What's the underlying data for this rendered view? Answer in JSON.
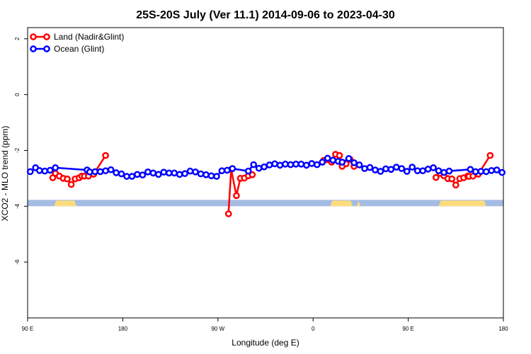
{
  "chart_data": {
    "type": "line",
    "title": "25S-20S July (Ver 11.1)   2014-09-06 to 2023-04-30",
    "xlabel": "Longitude (deg E)",
    "ylabel": "XCO2 - MLO trend (ppm)",
    "xlim": [
      90,
      450
    ],
    "ylim": [
      -8,
      2.4
    ],
    "x_ticks": [
      {
        "value": 90,
        "label": "90 E"
      },
      {
        "value": 162,
        "label": "180"
      },
      {
        "value": 234,
        "label": "90 W"
      },
      {
        "value": 306,
        "label": "0"
      },
      {
        "value": 378,
        "label": "90 E"
      },
      {
        "value": 450,
        "label": "180"
      }
    ],
    "y_ticks": [
      {
        "value": 2,
        "label": "2"
      },
      {
        "value": 0,
        "label": "0"
      },
      {
        "value": -2,
        "label": "-2"
      },
      {
        "value": -4,
        "label": "-4"
      },
      {
        "value": -6,
        "label": "-6"
      }
    ],
    "grid": false,
    "legend_position": "top-left",
    "series": [
      {
        "name": "Land (Nadir&Glint)",
        "color": "#ff0000",
        "points": [
          [
            109,
            -2.98
          ],
          [
            111,
            -2.82
          ],
          [
            114,
            -2.92
          ],
          [
            117,
            -3.0
          ],
          [
            120,
            -3.02
          ],
          [
            123,
            -3.22
          ],
          [
            126,
            -3.02
          ],
          [
            129,
            -2.98
          ],
          [
            131,
            -2.92
          ],
          [
            133,
            -2.92
          ],
          [
            136,
            -2.92
          ],
          [
            140,
            -2.85
          ],
          [
            149,
            -2.18
          ],
          [
            null,
            null
          ],
          [
            242,
            -4.27
          ],
          [
            244,
            -2.68
          ],
          [
            248,
            -3.62
          ],
          [
            251,
            -3.0
          ],
          [
            254,
            -2.99
          ],
          [
            257,
            -2.91
          ],
          [
            260,
            -2.87
          ],
          [
            null,
            null
          ],
          [
            314,
            -2.36
          ],
          [
            317,
            -2.33
          ],
          [
            320,
            -2.42
          ],
          [
            323,
            -2.14
          ],
          [
            326,
            -2.18
          ],
          [
            328,
            -2.57
          ],
          [
            331,
            -2.48
          ],
          [
            334,
            -2.32
          ],
          [
            337,
            -2.57
          ],
          [
            null,
            null
          ],
          [
            399,
            -2.97
          ],
          [
            402,
            -2.82
          ],
          [
            405,
            -2.91
          ],
          [
            408,
            -3.01
          ],
          [
            411,
            -3.02
          ],
          [
            414,
            -3.24
          ],
          [
            417,
            -3.01
          ],
          [
            420,
            -2.98
          ],
          [
            423,
            -2.92
          ],
          [
            424,
            -2.93
          ],
          [
            427,
            -2.92
          ],
          [
            431,
            -2.85
          ],
          [
            440,
            -2.18
          ]
        ]
      },
      {
        "name": "Ocean (Glint)",
        "color": "#0000ff",
        "points": [
          [
            92,
            -2.76
          ],
          [
            96,
            -2.62
          ],
          [
            99,
            -2.72
          ],
          [
            103,
            -2.74
          ],
          [
            107,
            -2.71
          ],
          [
            111,
            -2.62
          ],
          [
            135,
            -2.7
          ],
          [
            137,
            -2.77
          ],
          [
            141,
            -2.76
          ],
          [
            145,
            -2.76
          ],
          [
            149,
            -2.73
          ],
          [
            153,
            -2.69
          ],
          [
            157,
            -2.8
          ],
          [
            161,
            -2.84
          ],
          [
            165,
            -2.93
          ],
          [
            169,
            -2.93
          ],
          [
            173,
            -2.86
          ],
          [
            177,
            -2.88
          ],
          [
            181,
            -2.77
          ],
          [
            185,
            -2.81
          ],
          [
            189,
            -2.86
          ],
          [
            193,
            -2.78
          ],
          [
            197,
            -2.81
          ],
          [
            201,
            -2.81
          ],
          [
            205,
            -2.86
          ],
          [
            209,
            -2.83
          ],
          [
            213,
            -2.74
          ],
          [
            217,
            -2.77
          ],
          [
            221,
            -2.84
          ],
          [
            225,
            -2.87
          ],
          [
            229,
            -2.91
          ],
          [
            233,
            -2.93
          ],
          [
            237,
            -2.73
          ],
          [
            241,
            -2.71
          ],
          [
            245,
            -2.65
          ],
          [
            257,
            -2.74
          ],
          [
            261,
            -2.51
          ],
          [
            265,
            -2.64
          ],
          [
            269,
            -2.59
          ],
          [
            273,
            -2.52
          ],
          [
            277,
            -2.48
          ],
          [
            281,
            -2.53
          ],
          [
            285,
            -2.49
          ],
          [
            289,
            -2.51
          ],
          [
            293,
            -2.49
          ],
          [
            297,
            -2.49
          ],
          [
            301,
            -2.53
          ],
          [
            305,
            -2.47
          ],
          [
            309,
            -2.51
          ],
          [
            313,
            -2.42
          ],
          [
            317,
            -2.28
          ],
          [
            321,
            -2.35
          ],
          [
            325,
            -2.39
          ],
          [
            328,
            -2.42
          ],
          [
            333,
            -2.29
          ],
          [
            337,
            -2.44
          ],
          [
            341,
            -2.52
          ],
          [
            345,
            -2.65
          ],
          [
            349,
            -2.61
          ],
          [
            353,
            -2.7
          ],
          [
            357,
            -2.75
          ],
          [
            361,
            -2.66
          ],
          [
            365,
            -2.68
          ],
          [
            369,
            -2.6
          ],
          [
            373,
            -2.65
          ],
          [
            377,
            -2.75
          ],
          [
            381,
            -2.6
          ],
          [
            385,
            -2.73
          ],
          [
            389,
            -2.73
          ],
          [
            393,
            -2.67
          ],
          [
            397,
            -2.62
          ],
          [
            401,
            -2.73
          ],
          [
            405,
            -2.79
          ],
          [
            409,
            -2.74
          ],
          [
            425,
            -2.68
          ],
          [
            429,
            -2.76
          ],
          [
            433,
            -2.75
          ],
          [
            437,
            -2.76
          ],
          [
            441,
            -2.72
          ],
          [
            445,
            -2.7
          ],
          [
            449,
            -2.79
          ]
        ]
      }
    ],
    "land_mask_y": -4,
    "ocean_color": "#a4bce4",
    "land_color": "#fcdb7c",
    "land_segments": [
      [
        110,
        127
      ],
      [
        319,
        336
      ],
      [
        339,
        342
      ],
      [
        401,
        437
      ]
    ]
  }
}
